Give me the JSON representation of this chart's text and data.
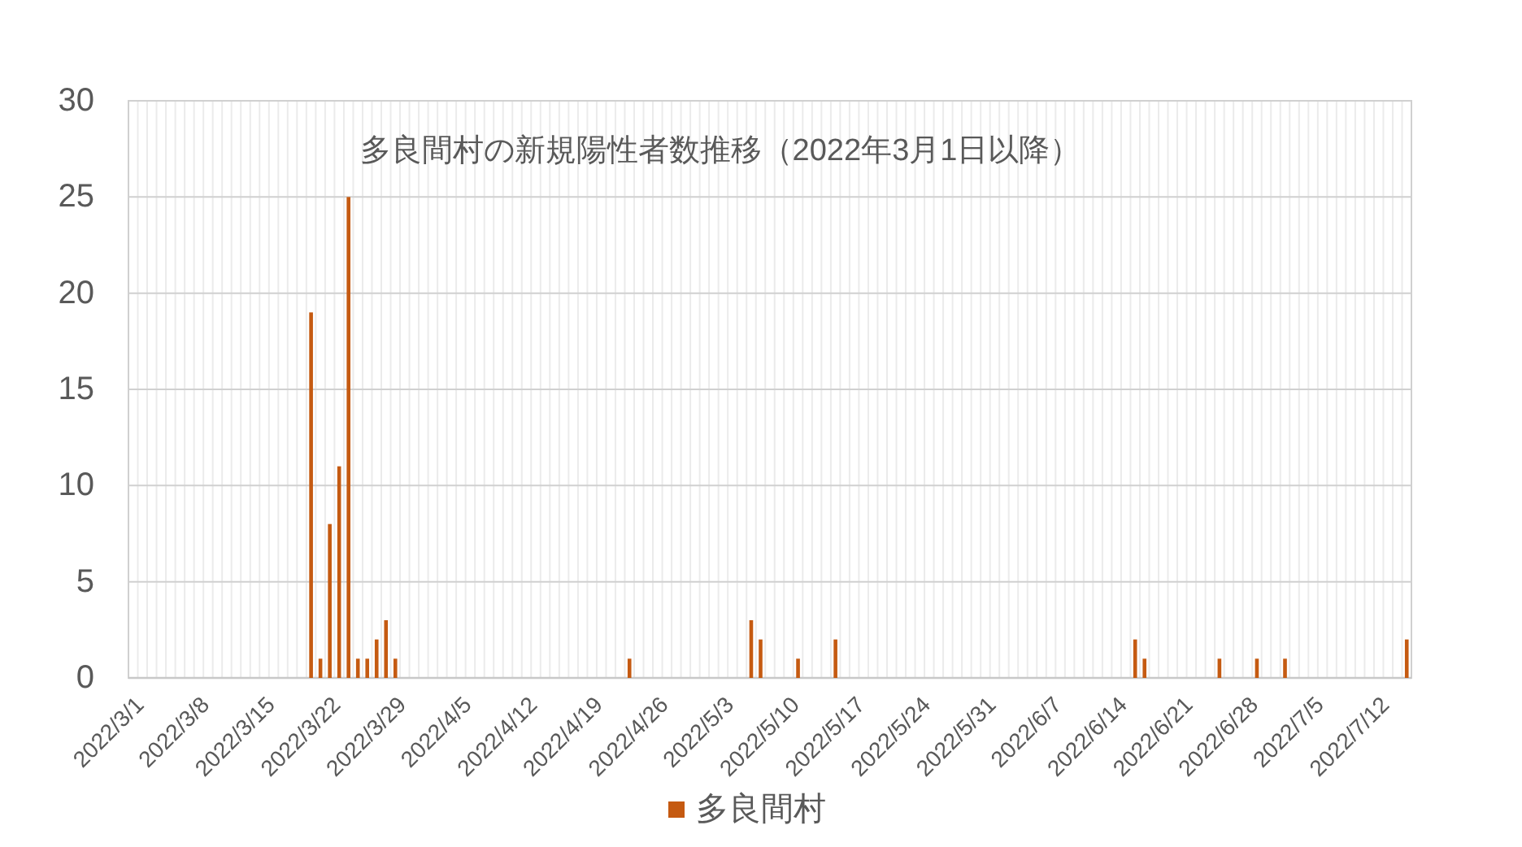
{
  "chart_data": {
    "type": "bar",
    "title": "多良間村の新規陽性者数推移（2022年3月1日以降）",
    "categories": [
      "2022/3/1",
      null,
      null,
      null,
      null,
      null,
      null,
      "2022/3/8",
      null,
      null,
      null,
      null,
      null,
      null,
      "2022/3/15",
      null,
      null,
      null,
      null,
      null,
      null,
      "2022/3/22",
      null,
      null,
      null,
      null,
      null,
      null,
      "2022/3/29",
      null,
      null,
      null,
      null,
      null,
      null,
      "2022/4/5",
      null,
      null,
      null,
      null,
      null,
      null,
      "2022/4/12",
      null,
      null,
      null,
      null,
      null,
      null,
      "2022/4/19",
      null,
      null,
      null,
      null,
      null,
      null,
      "2022/4/26",
      null,
      null,
      null,
      null,
      null,
      null,
      "2022/5/3",
      null,
      null,
      null,
      null,
      null,
      null,
      "2022/5/10",
      null,
      null,
      null,
      null,
      null,
      null,
      "2022/5/17",
      null,
      null,
      null,
      null,
      null,
      null,
      "2022/5/24",
      null,
      null,
      null,
      null,
      null,
      null,
      "2022/5/31",
      null,
      null,
      null,
      null,
      null,
      null,
      "2022/6/7",
      null,
      null,
      null,
      null,
      null,
      null,
      "2022/6/14",
      null,
      null,
      null,
      null,
      null,
      null,
      "2022/6/21",
      null,
      null,
      null,
      null,
      null,
      null,
      "2022/6/28",
      null,
      null,
      null,
      null,
      null,
      null,
      "2022/7/5",
      null,
      null,
      null,
      null,
      null,
      null,
      "2022/7/12",
      null,
      null,
      null
    ],
    "series": [
      {
        "name": "多良間村",
        "color": "#c55a11",
        "values": [
          0,
          0,
          0,
          0,
          0,
          0,
          0,
          0,
          0,
          0,
          0,
          0,
          0,
          0,
          0,
          0,
          0,
          0,
          0,
          19,
          1,
          8,
          11,
          25,
          1,
          1,
          2,
          3,
          1,
          0,
          0,
          0,
          0,
          0,
          0,
          0,
          0,
          0,
          0,
          0,
          0,
          0,
          0,
          0,
          0,
          0,
          0,
          0,
          0,
          0,
          0,
          0,
          0,
          1,
          0,
          0,
          0,
          0,
          0,
          0,
          0,
          0,
          0,
          0,
          0,
          0,
          3,
          2,
          0,
          0,
          0,
          1,
          0,
          0,
          0,
          2,
          0,
          0,
          0,
          0,
          0,
          0,
          0,
          0,
          0,
          0,
          0,
          0,
          0,
          0,
          0,
          0,
          0,
          0,
          0,
          0,
          0,
          0,
          0,
          0,
          0,
          0,
          0,
          0,
          0,
          0,
          0,
          2,
          1,
          0,
          0,
          0,
          0,
          0,
          0,
          0,
          1,
          0,
          0,
          0,
          1,
          0,
          0,
          1,
          0,
          0,
          0,
          0,
          0,
          0,
          0,
          0,
          0,
          0,
          0,
          0,
          2
        ]
      }
    ],
    "ylim": [
      0,
      30
    ],
    "yticks": [
      0,
      5,
      10,
      15,
      20,
      25,
      30
    ],
    "grid": true,
    "legend": "bottom"
  }
}
